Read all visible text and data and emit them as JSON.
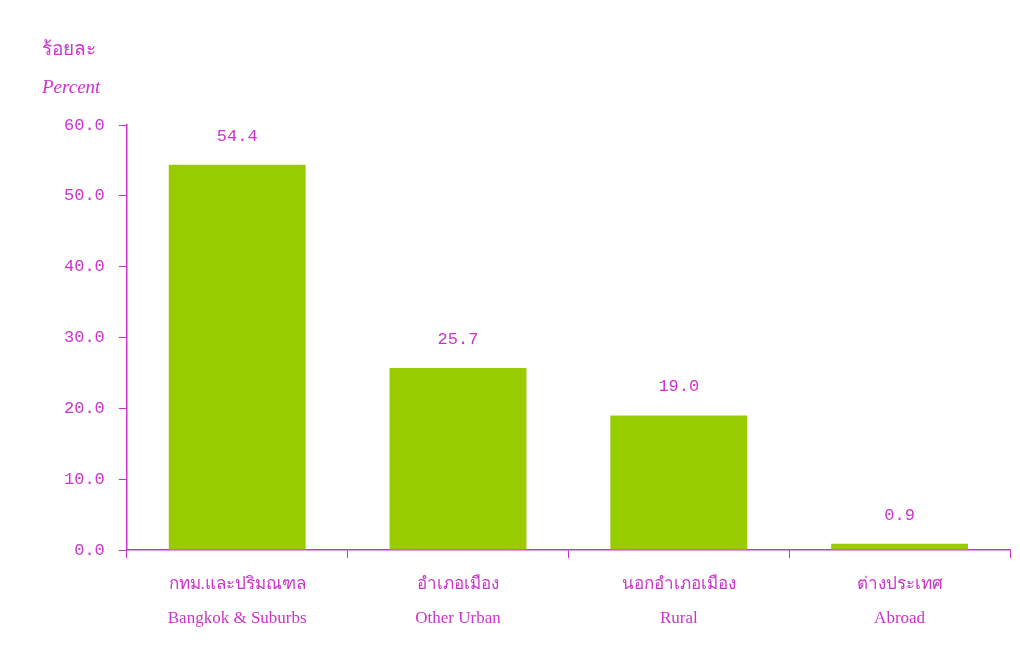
{
  "chart_data": {
    "type": "bar",
    "ylabel": "ร้อยละ\nPercent",
    "categories": [
      "กทม.และปริมณฑล\nBangkok & Suburbs",
      "อำเภอเมือง\nOther Urban",
      "นอกอำเภอเมือง\nRural",
      "ต่างประเทศ\nAbroad"
    ],
    "values": [
      54.4,
      25.7,
      19.0,
      0.9
    ],
    "value_labels": [
      "54.4",
      "25.7",
      "19.0",
      "0.9"
    ],
    "color": "#99cc00",
    "ylim": [
      0,
      60
    ],
    "yticks": [
      {
        "value": 0,
        "label": "0.0"
      },
      {
        "value": 10,
        "label": "10.0"
      },
      {
        "value": 20,
        "label": "20.0"
      },
      {
        "value": 30,
        "label": "30.0"
      },
      {
        "value": 40,
        "label": "40.0"
      },
      {
        "value": 50,
        "label": "50.0"
      },
      {
        "value": 60,
        "label": "60.0"
      }
    ],
    "grid": false,
    "legend": false
  }
}
